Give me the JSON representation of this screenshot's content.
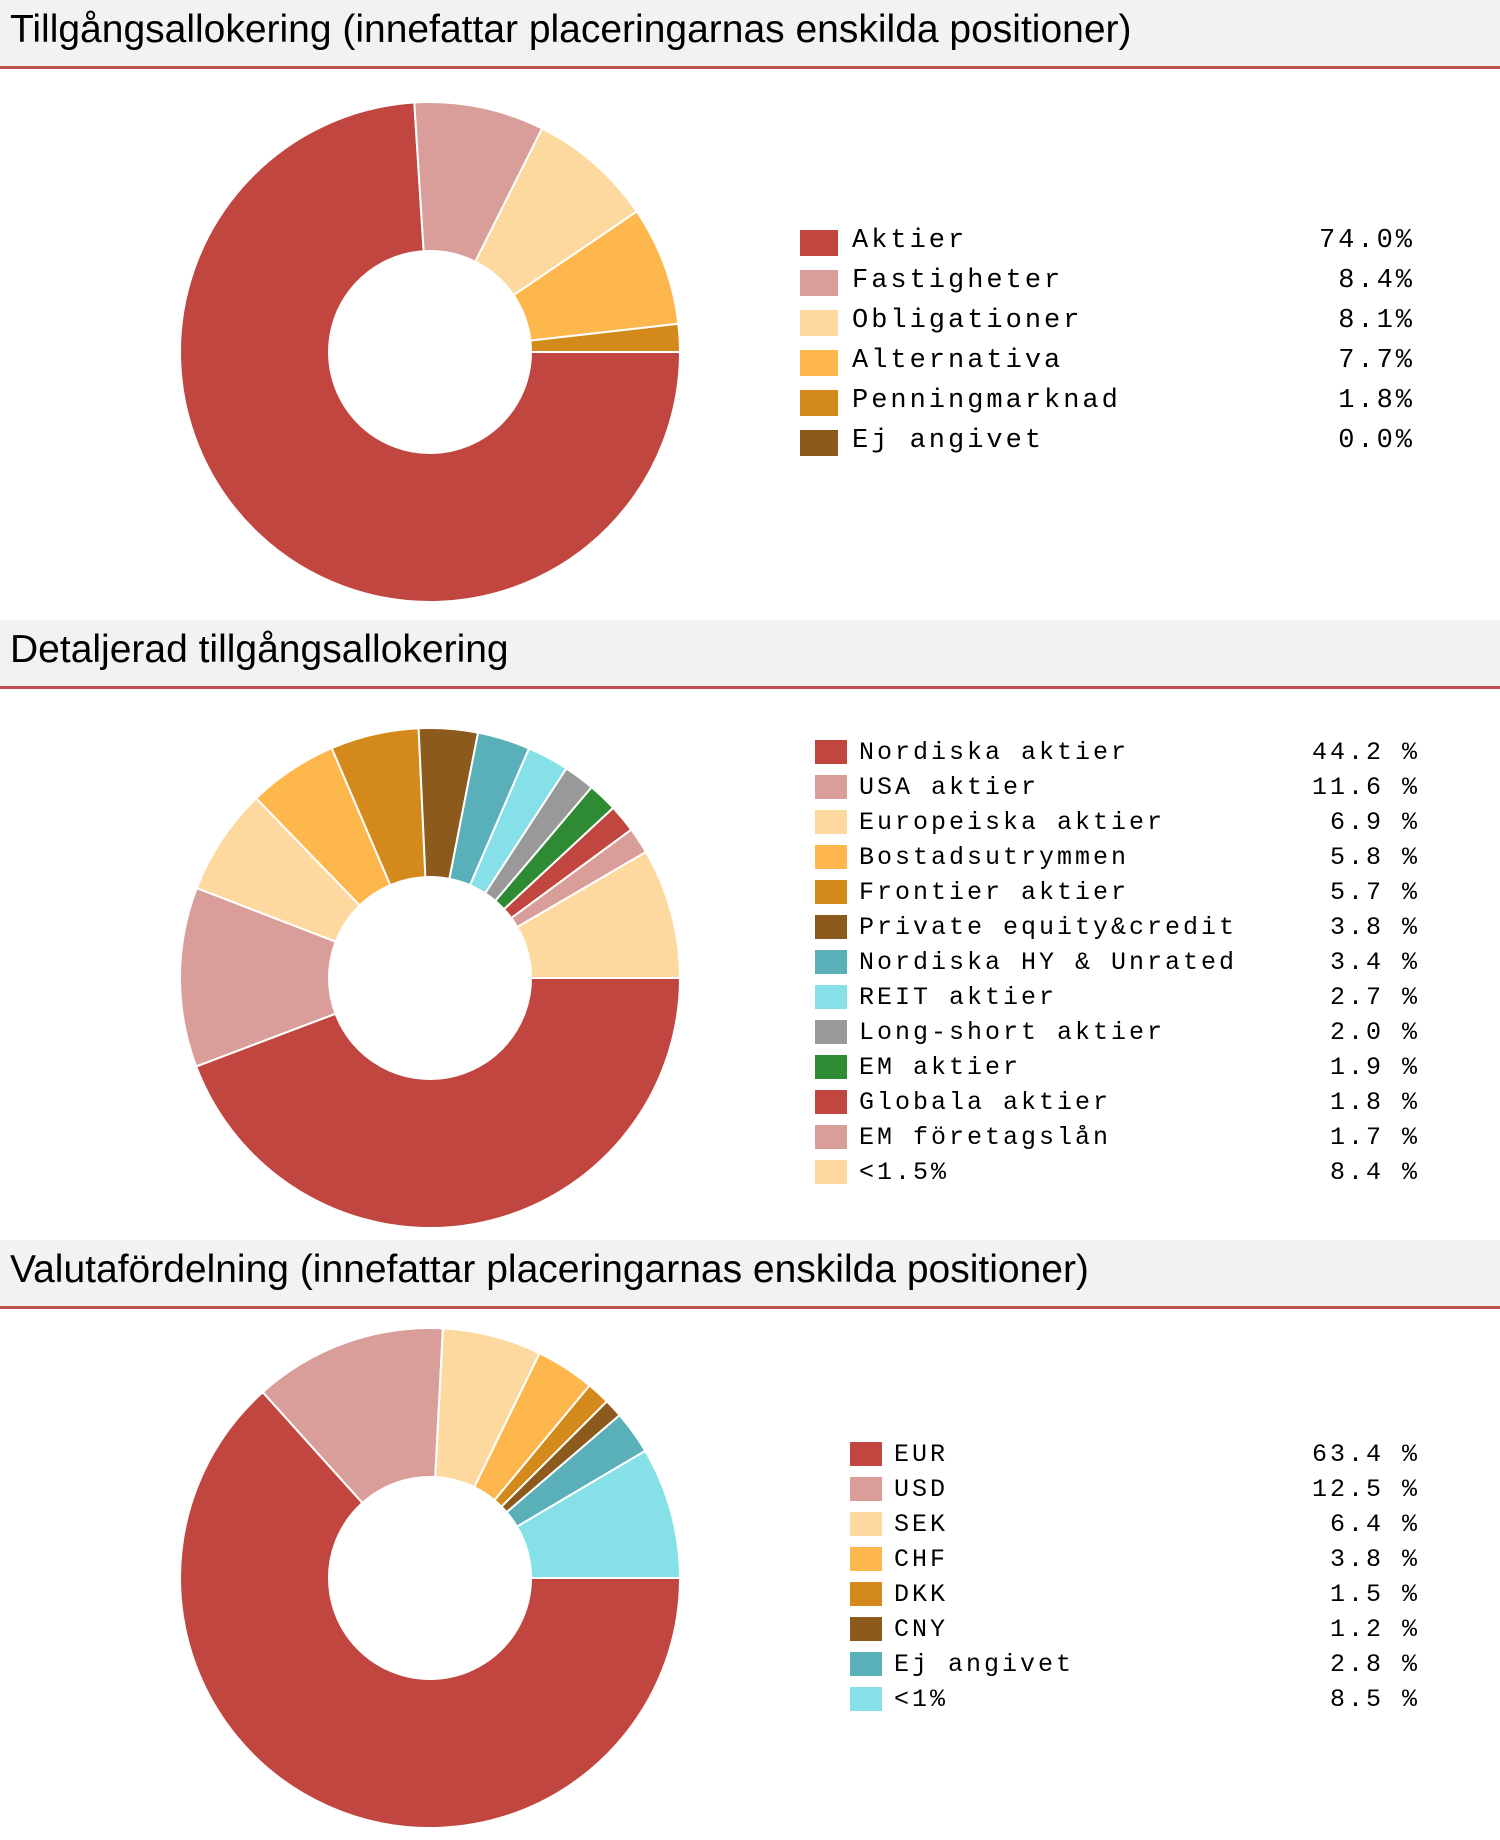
{
  "chart_data": [
    {
      "type": "pie",
      "title": "Tillgångsallokering (innefattar placeringarnas enskilda positioner)",
      "categories": [
        "Aktier",
        "Fastigheter",
        "Obligationer",
        "Alternativa",
        "Penningmarknad",
        "Ej angivet"
      ],
      "values": [
        74.0,
        8.4,
        8.1,
        7.7,
        1.8,
        0.0
      ],
      "value_labels": [
        "74.0%",
        "8.4%",
        "8.1%",
        "7.7%",
        "1.8%",
        "0.0%"
      ],
      "colors": [
        "#c0463f",
        "#da9e9a",
        "#fdd9a0",
        "#fdb74d",
        "#d48a1a",
        "#8c5a1c"
      ],
      "legend": "right"
    },
    {
      "type": "pie",
      "title": "Detaljerad tillgångsallokering",
      "categories": [
        "Nordiska aktier",
        "USA aktier",
        "Europeiska aktier",
        "Bostadsutrymmen",
        "Frontier aktier",
        "Private equity&credit",
        "Nordiska HY & Unrated",
        "REIT aktier",
        "Long-short aktier",
        "EM aktier",
        "Globala aktier",
        "EM företagslån",
        "<1.5%"
      ],
      "values": [
        44.2,
        11.6,
        6.9,
        5.8,
        5.7,
        3.8,
        3.4,
        2.7,
        2.0,
        1.9,
        1.8,
        1.7,
        8.4
      ],
      "value_labels": [
        "44.2 %",
        "11.6 %",
        "6.9 %",
        "5.8 %",
        "5.7 %",
        "3.8 %",
        "3.4 %",
        "2.7 %",
        "2.0 %",
        "1.9 %",
        "1.8 %",
        "1.7 %",
        "8.4 %"
      ],
      "colors": [
        "#c0463f",
        "#da9e9a",
        "#fdd9a0",
        "#fdb74d",
        "#d48a1a",
        "#8c5a1c",
        "#5ab0b8",
        "#86e0e8",
        "#999999",
        "#2e8b34",
        "#c0463f",
        "#da9e9a",
        "#fdd9a0"
      ],
      "legend": "right"
    },
    {
      "type": "pie",
      "title": "Valutafördelning (innefattar placeringarnas enskilda positioner)",
      "categories": [
        "EUR",
        "USD",
        "SEK",
        "CHF",
        "DKK",
        "CNY",
        "Ej angivet",
        "<1%"
      ],
      "values": [
        63.4,
        12.5,
        6.4,
        3.8,
        1.5,
        1.2,
        2.8,
        8.5
      ],
      "value_labels": [
        "63.4 %",
        "12.5 %",
        "6.4 %",
        "3.8 %",
        "1.5 %",
        "1.2 %",
        "2.8 %",
        "8.5 %"
      ],
      "colors": [
        "#c0463f",
        "#da9e9a",
        "#fdd9a0",
        "#fdb74d",
        "#d48a1a",
        "#8c5a1c",
        "#5ab0b8",
        "#86e0e8"
      ],
      "legend": "right"
    }
  ]
}
